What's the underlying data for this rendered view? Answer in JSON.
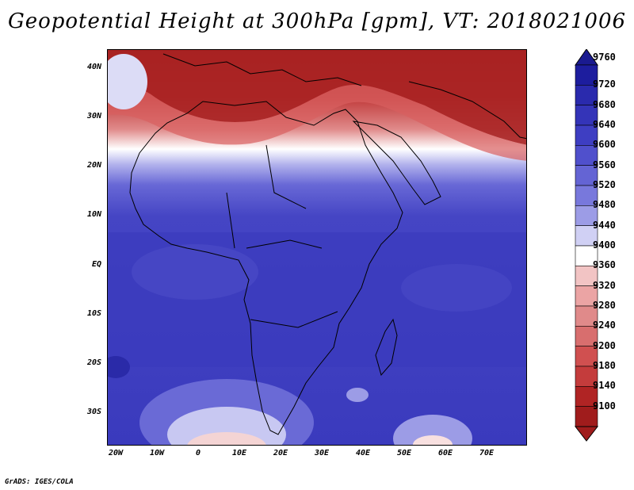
{
  "title": "Geopotential Height at 300hPa [gpm], VT: 2018021006",
  "footer": "GrADS: IGES/COLA",
  "map": {
    "lat_labels": [
      "40N",
      "30N",
      "20N",
      "10N",
      "EQ",
      "10S",
      "20S",
      "30S"
    ],
    "lon_labels": [
      "20W",
      "10W",
      "0",
      "10E",
      "20E",
      "30E",
      "40E",
      "50E",
      "60E",
      "70E"
    ],
    "lon_range": [
      -22,
      80
    ],
    "lat_range": [
      -37,
      44
    ]
  },
  "colorbar": {
    "levels": [
      9760,
      9720,
      9680,
      9640,
      9600,
      9560,
      9520,
      9480,
      9440,
      9400,
      9360,
      9320,
      9280,
      9240,
      9200,
      9180,
      9140,
      9100
    ],
    "colors": [
      "#1d1d9e",
      "#2a2aad",
      "#3434b8",
      "#3e3ec2",
      "#5050cc",
      "#6464d4",
      "#7878dc",
      "#9c9ce6",
      "#d0d0f4",
      "#ffffff",
      "#f2c4c4",
      "#eba4a4",
      "#e08a8a",
      "#d86e6e",
      "#d05050",
      "#c43c3c",
      "#b02424",
      "#a01c1c"
    ],
    "top_arrow_color": "#1a1a90",
    "bottom_arrow_color": "#a01c1c"
  }
}
